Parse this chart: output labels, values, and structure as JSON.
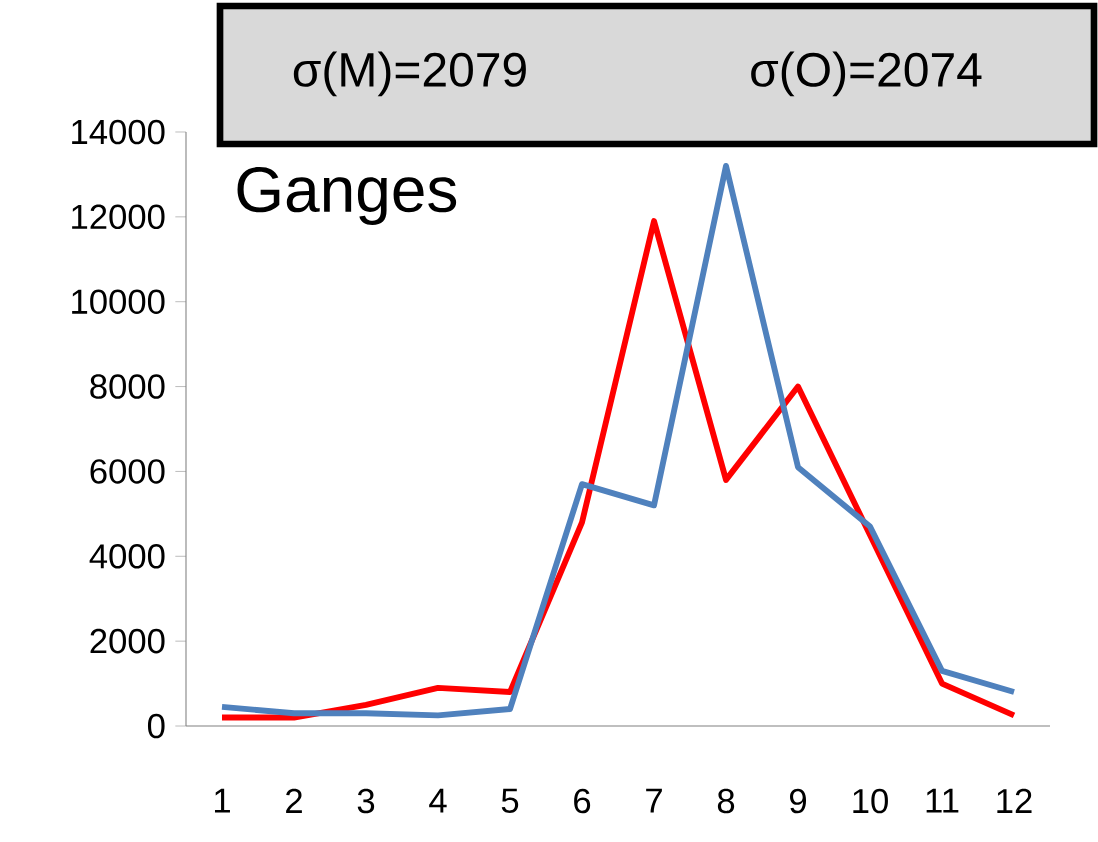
{
  "chart_data": {
    "type": "line",
    "title": "Ganges",
    "annotations": [
      "σ(M)=2079",
      "σ(O)=2074"
    ],
    "categories": [
      "1",
      "2",
      "3",
      "4",
      "5",
      "6",
      "7",
      "8",
      "9",
      "10",
      "11",
      "12"
    ],
    "series": [
      {
        "color": "#ff0000",
        "values": [
          200,
          200,
          500,
          900,
          800,
          4800,
          11900,
          5800,
          8000,
          4500,
          1000,
          250
        ]
      },
      {
        "color": "#4f81bd",
        "values": [
          450,
          300,
          300,
          250,
          400,
          5700,
          5200,
          13200,
          6100,
          4700,
          1300,
          800
        ]
      }
    ],
    "ylim": [
      0,
      14000
    ],
    "yticks": [
      0,
      2000,
      4000,
      6000,
      8000,
      10000,
      12000,
      14000
    ],
    "marker": "none",
    "line_style": "solid"
  }
}
